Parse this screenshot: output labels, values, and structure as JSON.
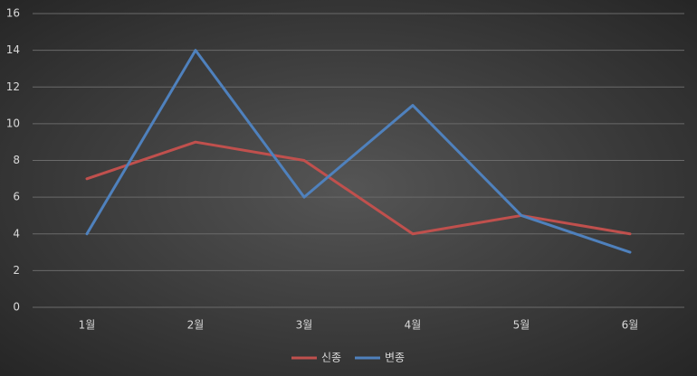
{
  "chart_data": {
    "type": "line",
    "categories": [
      "1월",
      "2월",
      "3월",
      "4월",
      "5월",
      "6월"
    ],
    "series": [
      {
        "name": "신종",
        "color": "#c0504d",
        "values": [
          7,
          9,
          8,
          4,
          5,
          4
        ]
      },
      {
        "name": "변종",
        "color": "#4f81bd",
        "values": [
          4,
          14,
          6,
          11,
          5,
          3
        ]
      }
    ],
    "ylim": [
      0,
      16
    ],
    "yticks": [
      0,
      2,
      4,
      6,
      8,
      10,
      12,
      14,
      16
    ],
    "grid": true,
    "legend": "bottom"
  }
}
